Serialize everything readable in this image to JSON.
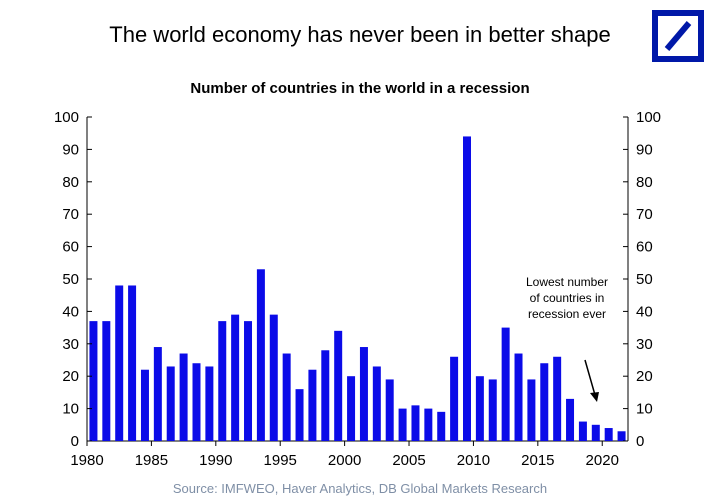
{
  "header": {
    "headline": "The world economy has never been in better shape",
    "logo_color": "#0018a8"
  },
  "chart_data": {
    "type": "bar",
    "title": "Number of countries in the world in a recession",
    "xlabel": "",
    "ylabel": "",
    "bar_color": "#0b0be8",
    "ylim": [
      0,
      100
    ],
    "yticks": [
      0,
      10,
      20,
      30,
      40,
      50,
      60,
      70,
      80,
      90,
      100
    ],
    "xticks": [
      1980,
      1985,
      1990,
      1995,
      2000,
      2005,
      2010,
      2015,
      2020
    ],
    "secondary_y_axis": true,
    "years": [
      1980,
      1981,
      1982,
      1983,
      1984,
      1985,
      1986,
      1987,
      1988,
      1989,
      1990,
      1991,
      1992,
      1993,
      1994,
      1995,
      1996,
      1997,
      1998,
      1999,
      2000,
      2001,
      2002,
      2003,
      2004,
      2005,
      2006,
      2007,
      2008,
      2009,
      2010,
      2011,
      2012,
      2013,
      2014,
      2015,
      2016,
      2017,
      2018,
      2019,
      2020,
      2021
    ],
    "values": [
      37,
      37,
      48,
      48,
      22,
      29,
      23,
      27,
      24,
      23,
      37,
      39,
      37,
      53,
      39,
      27,
      16,
      22,
      28,
      34,
      20,
      29,
      23,
      19,
      10,
      11,
      10,
      9,
      26,
      94,
      20,
      19,
      35,
      27,
      19,
      24,
      26,
      13,
      6,
      5,
      4,
      3
    ],
    "annotation": {
      "lines": [
        "Lowest number",
        "of countries in",
        "recession ever"
      ]
    }
  },
  "footer": {
    "source": "Source: IMFWEO, Haver Analytics, DB Global Markets Research"
  }
}
